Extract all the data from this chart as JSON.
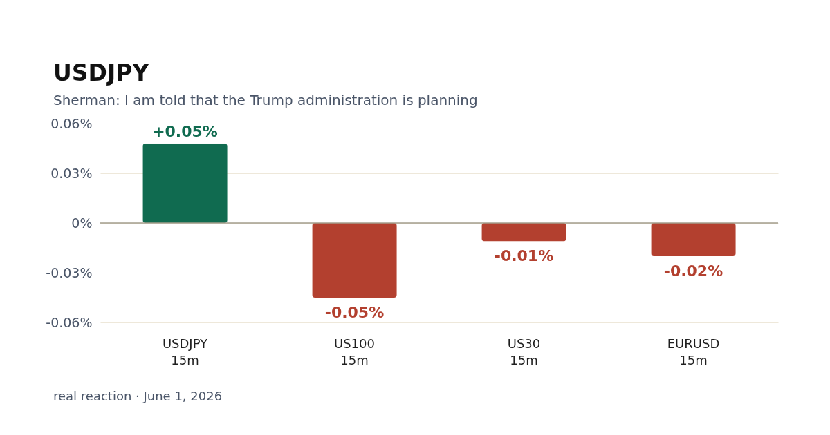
{
  "chart_data": {
    "type": "bar",
    "title": "USDJPY",
    "subtitle": "Sherman: I am told that the Trump administration is planning",
    "categories": [
      "USDJPY\n15m",
      "US100\n15m",
      "US30\n15m",
      "EURUSD\n15m"
    ],
    "values": [
      0.048,
      -0.045,
      -0.011,
      -0.02
    ],
    "colors": [
      "#106b50",
      "#b3402f",
      "#b3402f",
      "#b3402f"
    ],
    "value_labels": [
      "+0.05%",
      "-0.05%",
      "-0.01%",
      "-0.02%"
    ],
    "ylim": [
      -0.06,
      0.06
    ],
    "yticks": [
      {
        "value": 0.06,
        "label": "0.06%"
      },
      {
        "value": 0.03,
        "label": "0.03%"
      },
      {
        "value": 0,
        "label": "0%"
      },
      {
        "value": -0.03,
        "label": "-0.03%"
      },
      {
        "value": -0.06,
        "label": "-0.06%"
      }
    ],
    "grid": "y",
    "ref_lines": [
      {
        "axis": "y",
        "value": 0,
        "color": "#a39e8c"
      }
    ],
    "annotations": [
      "real reaction · June 1, 2026"
    ]
  }
}
